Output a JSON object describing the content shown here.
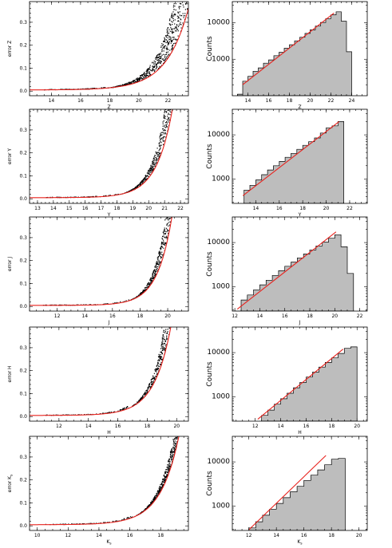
{
  "chart_data": [
    {
      "type": "scatter",
      "band": "Z",
      "xlabel": "Z",
      "ylabel": "error Z",
      "xlim": [
        12.5,
        23.4
      ],
      "ylim": [
        -0.02,
        0.39
      ],
      "xticks": [
        14,
        16,
        18,
        20,
        22
      ],
      "yticks": [
        0.0,
        0.1,
        0.2,
        0.3
      ],
      "xtick_labels": [
        "14",
        "16",
        "18",
        "20",
        "22"
      ],
      "ytick_labels": [
        "0.0",
        "0.1",
        "0.2",
        "0.3"
      ],
      "fit": {
        "x0": 18.08,
        "scale": 1.49,
        "floor": 0.005
      },
      "scatter_spread": 1.3,
      "scatter_start": 17.7,
      "color_points": "#000000",
      "color_fit": "#e8231e"
    },
    {
      "type": "bar",
      "band": "Z",
      "xlabel": "Z",
      "ylabel": "Counts",
      "log_y": true,
      "xlim": [
        12.5,
        25.5
      ],
      "ylim": [
        100,
        38000
      ],
      "xticks": [
        14,
        16,
        18,
        20,
        22,
        24
      ],
      "xtick_labels": [
        "14",
        "16",
        "18",
        "20",
        "22",
        "24"
      ],
      "yticks": [
        1000,
        10000
      ],
      "ytick_labels": [
        "1000",
        "10000"
      ],
      "bin_edges": [
        13.0,
        13.5,
        14.0,
        14.5,
        15.0,
        15.5,
        16.0,
        16.5,
        17.0,
        17.5,
        18.0,
        18.5,
        19.0,
        19.5,
        20.0,
        20.5,
        21.0,
        21.5,
        22.0,
        22.5,
        23.0,
        23.5,
        24.0
      ],
      "counts": [
        110,
        250,
        340,
        470,
        580,
        780,
        960,
        1250,
        1550,
        2000,
        2500,
        3200,
        4000,
        5100,
        6400,
        8100,
        10200,
        13000,
        16500,
        20000,
        11000,
        1600
      ],
      "fit_line": {
        "x": [
          13.5,
          22.3
        ],
        "y": [
          200,
          18500
        ]
      },
      "color_fill": "#bdbdbd",
      "color_fit": "#e8231e"
    },
    {
      "type": "scatter",
      "band": "Y",
      "xlabel": "Y",
      "ylabel": "error Y",
      "xlim": [
        12.5,
        22.5
      ],
      "ylim": [
        -0.02,
        0.39
      ],
      "xticks": [
        13,
        14,
        15,
        16,
        17,
        18,
        19,
        20,
        21,
        22
      ],
      "xtick_labels": [
        "13",
        "14",
        "15",
        "16",
        "17",
        "18",
        "19",
        "20",
        "21",
        "22"
      ],
      "yticks": [
        0.0,
        0.1,
        0.2,
        0.3
      ],
      "ytick_labels": [
        "0.0",
        "0.1",
        "0.2",
        "0.3"
      ],
      "fit": {
        "x0": 17.84,
        "scale": 1.0,
        "floor": 0.005
      },
      "scatter_spread": 0.9,
      "scatter_start": 18.2,
      "color_points": "#000000",
      "color_fit": "#e8231e"
    },
    {
      "type": "bar",
      "band": "Y",
      "xlabel": "Y",
      "ylabel": "Counts",
      "log_y": true,
      "xlim": [
        12.0,
        23.5
      ],
      "ylim": [
        280,
        38000
      ],
      "xticks": [
        14,
        16,
        18,
        20,
        22
      ],
      "xtick_labels": [
        "14",
        "16",
        "18",
        "20",
        "22"
      ],
      "yticks": [
        1000,
        10000
      ],
      "ytick_labels": [
        "1000",
        "10000"
      ],
      "bin_edges": [
        13.0,
        13.5,
        14.0,
        14.5,
        15.0,
        15.5,
        16.0,
        16.5,
        17.0,
        17.5,
        18.0,
        18.5,
        19.0,
        19.5,
        20.0,
        20.5,
        21.0,
        21.5
      ],
      "counts": [
        560,
        720,
        950,
        1250,
        1600,
        2000,
        2500,
        3100,
        3800,
        4700,
        5800,
        7000,
        8500,
        11000,
        14500,
        16000,
        20000
      ],
      "fit_line": {
        "x": [
          12.9,
          21.1
        ],
        "y": [
          420,
          20000
        ]
      },
      "color_fill": "#bdbdbd",
      "color_fit": "#e8231e"
    },
    {
      "type": "scatter",
      "band": "J",
      "xlabel": "J",
      "ylabel": "error J",
      "xlim": [
        10,
        21.5
      ],
      "ylim": [
        -0.02,
        0.39
      ],
      "xticks": [
        12,
        14,
        16,
        18,
        20
      ],
      "xtick_labels": [
        "12",
        "14",
        "16",
        "18",
        "20"
      ],
      "yticks": [
        0.0,
        0.1,
        0.2,
        0.3
      ],
      "ytick_labels": [
        "0.0",
        "0.1",
        "0.2",
        "0.3"
      ],
      "fit": {
        "x0": 16.47,
        "scale": 1.05,
        "floor": 0.005
      },
      "scatter_spread": 0.9,
      "scatter_start": 17.2,
      "color_points": "#000000",
      "color_fit": "#e8231e"
    },
    {
      "type": "bar",
      "band": "J",
      "xlabel": "J",
      "ylabel": "Counts",
      "log_y": true,
      "xlim": [
        11.8,
        22.6
      ],
      "ylim": [
        280,
        38000
      ],
      "xticks": [
        12,
        14,
        16,
        18,
        20,
        22
      ],
      "xtick_labels": [
        "12",
        "14",
        "16",
        "18",
        "20",
        "22"
      ],
      "yticks": [
        1000,
        10000
      ],
      "ytick_labels": [
        "1000",
        "10000"
      ],
      "bin_edges": [
        12.0,
        12.5,
        13.0,
        13.5,
        14.0,
        14.5,
        15.0,
        15.5,
        16.0,
        16.5,
        17.0,
        17.5,
        18.0,
        18.5,
        19.0,
        19.5,
        20.0,
        20.5,
        21.0,
        21.5
      ],
      "counts": [
        280,
        500,
        650,
        850,
        1100,
        1400,
        1800,
        2300,
        2900,
        3600,
        4500,
        5500,
        6800,
        8400,
        10200,
        12500,
        15000,
        8000,
        2000
      ],
      "fit_line": {
        "x": [
          12.2,
          20.1
        ],
        "y": [
          310,
          17500
        ]
      },
      "color_fill": "#bdbdbd",
      "color_fit": "#e8231e"
    },
    {
      "type": "scatter",
      "band": "H",
      "xlabel": "H",
      "ylabel": "error H",
      "xlim": [
        10,
        20.8
      ],
      "ylim": [
        -0.02,
        0.39
      ],
      "xticks": [
        12,
        14,
        16,
        18,
        20
      ],
      "xtick_labels": [
        "12",
        "14",
        "16",
        "18",
        "20"
      ],
      "yticks": [
        0.0,
        0.1,
        0.2,
        0.3
      ],
      "ytick_labels": [
        "0.0",
        "0.1",
        "0.2",
        "0.3"
      ],
      "fit": {
        "x0": 15.44,
        "scale": 1.14,
        "floor": 0.005
      },
      "scatter_spread": 0.8,
      "scatter_start": 16.8,
      "color_points": "#000000",
      "color_fit": "#e8231e"
    },
    {
      "type": "bar",
      "band": "H",
      "xlabel": "H",
      "ylabel": "Counts",
      "log_y": true,
      "xlim": [
        10.2,
        20.8
      ],
      "ylim": [
        280,
        38000
      ],
      "xticks": [
        12,
        14,
        16,
        18,
        20
      ],
      "xtick_labels": [
        "12",
        "14",
        "16",
        "18",
        "20"
      ],
      "yticks": [
        1000,
        10000
      ],
      "ytick_labels": [
        "1000",
        "10000"
      ],
      "bin_edges": [
        12.5,
        13.0,
        13.5,
        14.0,
        14.5,
        15.0,
        15.5,
        16.0,
        16.5,
        17.0,
        17.5,
        18.0,
        18.5,
        19.0,
        19.5,
        20.0
      ],
      "counts": [
        380,
        500,
        680,
        900,
        1200,
        1600,
        2100,
        2800,
        3600,
        4700,
        6000,
        7600,
        9600,
        12500,
        13500
      ],
      "fit_line": {
        "x": [
          12.2,
          18.9
        ],
        "y": [
          310,
          12000
        ]
      },
      "color_fill": "#bdbdbd",
      "color_fit": "#e8231e"
    },
    {
      "type": "scatter",
      "band": "Ks",
      "xlabel": "K",
      "xlabel_sub": "s",
      "ylabel": "error K",
      "ylabel_sub": "s",
      "xlim": [
        9.5,
        19.8
      ],
      "ylim": [
        -0.02,
        0.39
      ],
      "xticks": [
        10,
        12,
        14,
        16,
        18
      ],
      "xtick_labels": [
        "10",
        "12",
        "14",
        "16",
        "18"
      ],
      "yticks": [
        0.0,
        0.1,
        0.2,
        0.3
      ],
      "ytick_labels": [
        "0.0",
        "0.1",
        "0.2",
        "0.3"
      ],
      "fit": {
        "x0": 14.8,
        "scale": 1.2,
        "floor": 0.005
      },
      "scatter_spread": 0.45,
      "scatter_start": 16.3,
      "color_points": "#000000",
      "color_fit": "#e8231e"
    },
    {
      "type": "bar",
      "band": "Ks",
      "xlabel": "K",
      "xlabel_sub": "s",
      "ylabel": "Counts",
      "log_y": true,
      "xlim": [
        10.8,
        20.6
      ],
      "ylim": [
        280,
        38000
      ],
      "xticks": [
        12,
        14,
        16,
        18,
        20
      ],
      "xtick_labels": [
        "12",
        "14",
        "16",
        "18",
        "20"
      ],
      "yticks": [
        1000,
        10000
      ],
      "ytick_labels": [
        "1000",
        "10000"
      ],
      "bin_edges": [
        12.0,
        12.5,
        13.0,
        13.5,
        14.0,
        14.5,
        15.0,
        15.5,
        16.0,
        16.5,
        17.0,
        17.5,
        18.0,
        18.5,
        19.0
      ],
      "counts": [
        320,
        440,
        620,
        850,
        1150,
        1550,
        2100,
        2800,
        3800,
        5000,
        6600,
        8600,
        11500,
        12000
      ],
      "fit_line": {
        "x": [
          12.0,
          17.6
        ],
        "y": [
          290,
          14000
        ]
      },
      "color_fill": "#bdbdbd",
      "color_fit": "#e8231e"
    }
  ]
}
